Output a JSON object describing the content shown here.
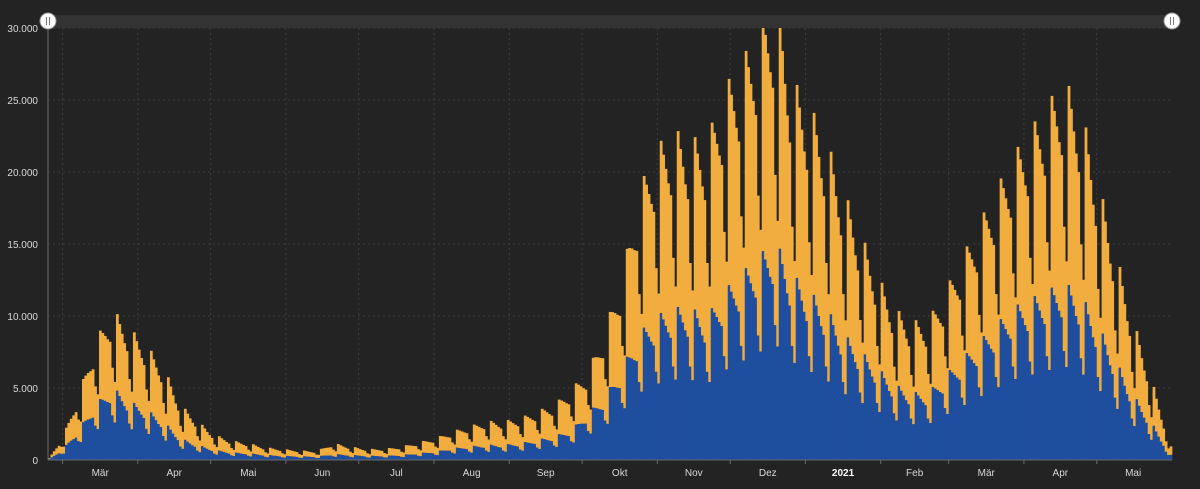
{
  "chart_data": {
    "type": "bar",
    "stacked": true,
    "start_date": "2020-02-24",
    "end_date": "2021-05-31",
    "x_tick_labels": [
      "Mär",
      "Apr",
      "Mai",
      "Jun",
      "Jul",
      "Aug",
      "Sep",
      "Okt",
      "Nov",
      "Dez",
      "2021",
      "Feb",
      "Mär",
      "Apr",
      "Mai"
    ],
    "y_tick_labels": [
      "0",
      "5.000",
      "10.000",
      "15.000",
      "20.000",
      "25.000",
      "30.000"
    ],
    "ylim": [
      0,
      30000
    ],
    "grid": true,
    "colors": {
      "background": "#232323",
      "series_lower": "#1f4e9e",
      "series_upper": "#f2ad3f",
      "grid": "#3e3e3e",
      "navigator": "#333333"
    },
    "series": [
      {
        "color": "#1f4e9e",
        "anchors": [
          [
            "2020-02-24",
            50
          ],
          [
            "2020-03-01",
            700
          ],
          [
            "2020-03-08",
            2000
          ],
          [
            "2020-03-14",
            3300
          ],
          [
            "2020-03-21",
            4300
          ],
          [
            "2020-03-28",
            3500
          ],
          [
            "2020-04-04",
            3000
          ],
          [
            "2020-04-11",
            2300
          ],
          [
            "2020-04-18",
            1300
          ],
          [
            "2020-04-25",
            900
          ],
          [
            "2020-05-02",
            600
          ],
          [
            "2020-05-09",
            450
          ],
          [
            "2020-05-16",
            400
          ],
          [
            "2020-05-23",
            300
          ],
          [
            "2020-05-30",
            250
          ],
          [
            "2020-06-06",
            220
          ],
          [
            "2020-06-13",
            200
          ],
          [
            "2020-06-20",
            350
          ],
          [
            "2020-06-27",
            300
          ],
          [
            "2020-07-04",
            250
          ],
          [
            "2020-07-11",
            250
          ],
          [
            "2020-07-18",
            300
          ],
          [
            "2020-07-25",
            400
          ],
          [
            "2020-08-01",
            500
          ],
          [
            "2020-08-08",
            700
          ],
          [
            "2020-08-15",
            800
          ],
          [
            "2020-08-22",
            900
          ],
          [
            "2020-08-29",
            900
          ],
          [
            "2020-09-05",
            1000
          ],
          [
            "2020-09-12",
            1200
          ],
          [
            "2020-09-19",
            1400
          ],
          [
            "2020-09-26",
            1800
          ],
          [
            "2020-10-03",
            2800
          ],
          [
            "2020-10-10",
            3800
          ],
          [
            "2020-10-17",
            5500
          ],
          [
            "2020-10-24",
            7500
          ],
          [
            "2020-10-31",
            8500
          ],
          [
            "2020-11-07",
            9000
          ],
          [
            "2020-11-14",
            9000
          ],
          [
            "2020-11-21",
            8500
          ],
          [
            "2020-11-28",
            10000
          ],
          [
            "2020-12-05",
            11000
          ],
          [
            "2020-12-12",
            12000
          ],
          [
            "2020-12-19",
            13000
          ],
          [
            "2020-12-26",
            11000
          ],
          [
            "2021-01-02",
            10000
          ],
          [
            "2021-01-09",
            9000
          ],
          [
            "2021-01-16",
            7500
          ],
          [
            "2021-01-23",
            6500
          ],
          [
            "2021-01-30",
            5500
          ],
          [
            "2021-02-06",
            4500
          ],
          [
            "2021-02-13",
            4000
          ],
          [
            "2021-02-20",
            4000
          ],
          [
            "2021-02-27",
            5000
          ],
          [
            "2021-03-06",
            6000
          ],
          [
            "2021-03-13",
            7000
          ],
          [
            "2021-03-20",
            8000
          ],
          [
            "2021-03-27",
            9000
          ],
          [
            "2021-04-03",
            9500
          ],
          [
            "2021-04-10",
            10000
          ],
          [
            "2021-04-17",
            10500
          ],
          [
            "2021-04-24",
            9800
          ],
          [
            "2021-05-01",
            8000
          ],
          [
            "2021-05-08",
            6000
          ],
          [
            "2021-05-15",
            4000
          ],
          [
            "2021-05-22",
            2500
          ],
          [
            "2021-05-31",
            300
          ]
        ]
      },
      {
        "color": "#f2ad3f",
        "anchors": [
          [
            "2020-02-24",
            60
          ],
          [
            "2020-03-01",
            800
          ],
          [
            "2020-03-08",
            2300
          ],
          [
            "2020-03-14",
            3800
          ],
          [
            "2020-03-21",
            4600
          ],
          [
            "2020-03-28",
            4300
          ],
          [
            "2020-04-04",
            3800
          ],
          [
            "2020-04-11",
            3200
          ],
          [
            "2020-04-18",
            2000
          ],
          [
            "2020-04-25",
            1400
          ],
          [
            "2020-05-02",
            900
          ],
          [
            "2020-05-09",
            700
          ],
          [
            "2020-05-16",
            600
          ],
          [
            "2020-05-23",
            450
          ],
          [
            "2020-05-30",
            400
          ],
          [
            "2020-06-06",
            350
          ],
          [
            "2020-06-13",
            320
          ],
          [
            "2020-06-20",
            650
          ],
          [
            "2020-06-27",
            500
          ],
          [
            "2020-07-04",
            400
          ],
          [
            "2020-07-11",
            420
          ],
          [
            "2020-07-18",
            500
          ],
          [
            "2020-07-25",
            650
          ],
          [
            "2020-08-01",
            800
          ],
          [
            "2020-08-08",
            1000
          ],
          [
            "2020-08-15",
            1200
          ],
          [
            "2020-08-22",
            1400
          ],
          [
            "2020-08-29",
            1400
          ],
          [
            "2020-09-05",
            1500
          ],
          [
            "2020-09-12",
            1700
          ],
          [
            "2020-09-19",
            1900
          ],
          [
            "2020-09-26",
            2400
          ],
          [
            "2020-10-03",
            2500
          ],
          [
            "2020-10-10",
            4000
          ],
          [
            "2020-10-17",
            5500
          ],
          [
            "2020-10-24",
            8500
          ],
          [
            "2020-10-31",
            10000
          ],
          [
            "2020-11-07",
            10500
          ],
          [
            "2020-11-14",
            10000
          ],
          [
            "2020-11-21",
            10500
          ],
          [
            "2020-11-28",
            12000
          ],
          [
            "2020-12-05",
            12500
          ],
          [
            "2020-12-12",
            13500
          ],
          [
            "2020-12-19",
            14500
          ],
          [
            "2020-12-26",
            11500
          ],
          [
            "2021-01-02",
            11000
          ],
          [
            "2021-01-09",
            10000
          ],
          [
            "2021-01-16",
            8500
          ],
          [
            "2021-01-23",
            7000
          ],
          [
            "2021-01-30",
            5500
          ],
          [
            "2021-02-06",
            4500
          ],
          [
            "2021-02-13",
            4200
          ],
          [
            "2021-02-20",
            4300
          ],
          [
            "2021-02-27",
            5000
          ],
          [
            "2021-03-06",
            6000
          ],
          [
            "2021-03-13",
            7000
          ],
          [
            "2021-03-20",
            8000
          ],
          [
            "2021-03-27",
            9000
          ],
          [
            "2021-04-03",
            10000
          ],
          [
            "2021-04-10",
            11000
          ],
          [
            "2021-04-17",
            12000
          ],
          [
            "2021-04-24",
            11000
          ],
          [
            "2021-05-01",
            8500
          ],
          [
            "2021-05-08",
            6500
          ],
          [
            "2021-05-15",
            4500
          ],
          [
            "2021-05-22",
            2800
          ],
          [
            "2021-05-31",
            500
          ]
        ]
      }
    ]
  }
}
